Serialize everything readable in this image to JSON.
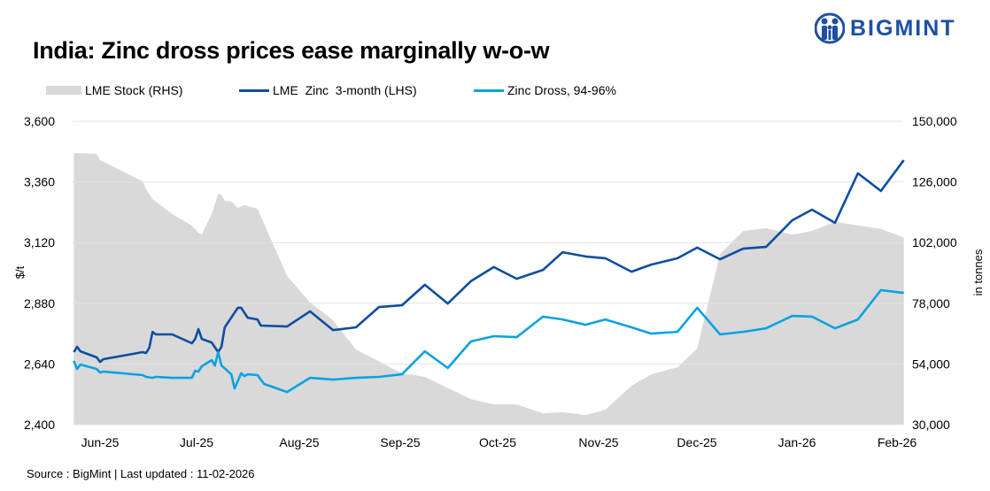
{
  "header": {
    "title": "India: Zinc dross prices ease marginally w-o-w",
    "logo_text": "BIGMINT"
  },
  "footer": {
    "source": "Source : BigMint | Last updated : 11-02-2026"
  },
  "colors": {
    "lme_zinc": "#0d4ea0",
    "zinc_dross": "#0aa2e0",
    "lme_stock": "#d9d9d9",
    "brand": "#1d50a2"
  },
  "chart_data": {
    "type": "line+area",
    "title": "India: Zinc dross prices ease marginally w-o-w",
    "ylabel": "$/t",
    "y2label": "in tonnes",
    "ylim": [
      2400,
      3600
    ],
    "y2lim": [
      30000,
      150000
    ],
    "yticks": [
      "2,400",
      "2,640",
      "2,880",
      "3,120",
      "3,360",
      "3,600"
    ],
    "y2ticks": [
      "30,000",
      "54,000",
      "78,000",
      "102,000",
      "126,000",
      "150,000"
    ],
    "xticks": [
      "Jun-25",
      "Jul-25",
      "Aug-25",
      "Sep-25",
      "Oct-25",
      "Nov-25",
      "Dec-25",
      "Jan-26",
      "Feb-26"
    ],
    "grid": true,
    "legend_position": "top",
    "series": [
      {
        "name": "LME Stock (RHS)",
        "type": "area",
        "axis": "right",
        "points": [
          [
            "2025-05-24",
            137400
          ],
          [
            "2025-05-31",
            137100
          ],
          [
            "2025-06-01",
            134600
          ],
          [
            "2025-06-14",
            126200
          ],
          [
            "2025-06-15",
            123100
          ],
          [
            "2025-06-17",
            119200
          ],
          [
            "2025-06-23",
            113300
          ],
          [
            "2025-06-29",
            108700
          ],
          [
            "2025-07-01",
            105900
          ],
          [
            "2025-07-02",
            105200
          ],
          [
            "2025-07-05",
            113300
          ],
          [
            "2025-07-07",
            121300
          ],
          [
            "2025-07-08",
            121000
          ],
          [
            "2025-07-09",
            118500
          ],
          [
            "2025-07-11",
            118200
          ],
          [
            "2025-07-13",
            115700
          ],
          [
            "2025-07-15",
            116800
          ],
          [
            "2025-07-19",
            115400
          ],
          [
            "2025-07-28",
            88800
          ],
          [
            "2025-08-04",
            78300
          ],
          [
            "2025-08-11",
            71300
          ],
          [
            "2025-08-18",
            59700
          ],
          [
            "2025-09-01",
            50300
          ],
          [
            "2025-09-08",
            48900
          ],
          [
            "2025-09-22",
            40100
          ],
          [
            "2025-09-29",
            38000
          ],
          [
            "2025-10-06",
            38000
          ],
          [
            "2025-10-14",
            34500
          ],
          [
            "2025-10-20",
            34900
          ],
          [
            "2025-10-27",
            33800
          ],
          [
            "2025-11-02",
            35900
          ],
          [
            "2025-11-10",
            45400
          ],
          [
            "2025-11-16",
            49900
          ],
          [
            "2025-11-24",
            52700
          ],
          [
            "2025-11-30",
            60100
          ],
          [
            "2025-12-07",
            97500
          ],
          [
            "2025-12-14",
            106600
          ],
          [
            "2025-12-21",
            107700
          ],
          [
            "2025-12-29",
            105200
          ],
          [
            "2026-01-04",
            106600
          ],
          [
            "2026-01-11",
            110200
          ],
          [
            "2026-01-18",
            108800
          ],
          [
            "2026-01-25",
            107400
          ],
          [
            "2026-02-01",
            104000
          ]
        ]
      },
      {
        "name": "LME  Zinc  3-month (LHS)",
        "type": "line",
        "axis": "left",
        "points": [
          [
            "2025-05-24",
            2687
          ],
          [
            "2025-05-25",
            2708
          ],
          [
            "2025-05-26",
            2690
          ],
          [
            "2025-05-31",
            2666
          ],
          [
            "2025-06-01",
            2648
          ],
          [
            "2025-06-02",
            2659
          ],
          [
            "2025-06-14",
            2687
          ],
          [
            "2025-06-15",
            2683
          ],
          [
            "2025-06-16",
            2704
          ],
          [
            "2025-06-17",
            2767
          ],
          [
            "2025-06-18",
            2757
          ],
          [
            "2025-06-23",
            2757
          ],
          [
            "2025-06-29",
            2722
          ],
          [
            "2025-06-30",
            2739
          ],
          [
            "2025-07-01",
            2778
          ],
          [
            "2025-07-02",
            2739
          ],
          [
            "2025-07-05",
            2725
          ],
          [
            "2025-07-07",
            2687
          ],
          [
            "2025-07-08",
            2708
          ],
          [
            "2025-07-09",
            2785
          ],
          [
            "2025-07-13",
            2862
          ],
          [
            "2025-07-14",
            2862
          ],
          [
            "2025-07-16",
            2823
          ],
          [
            "2025-07-19",
            2816
          ],
          [
            "2025-07-20",
            2792
          ],
          [
            "2025-07-28",
            2788
          ],
          [
            "2025-08-04",
            2848
          ],
          [
            "2025-08-11",
            2774
          ],
          [
            "2025-08-18",
            2785
          ],
          [
            "2025-08-25",
            2865
          ],
          [
            "2025-09-01",
            2872
          ],
          [
            "2025-09-08",
            2953
          ],
          [
            "2025-09-15",
            2879
          ],
          [
            "2025-09-22",
            2967
          ],
          [
            "2025-09-29",
            3023
          ],
          [
            "2025-10-06",
            2977
          ],
          [
            "2025-10-14",
            3012
          ],
          [
            "2025-10-20",
            3082
          ],
          [
            "2025-10-27",
            3065
          ],
          [
            "2025-11-02",
            3058
          ],
          [
            "2025-11-10",
            3005
          ],
          [
            "2025-11-16",
            3033
          ],
          [
            "2025-11-24",
            3058
          ],
          [
            "2025-11-30",
            3100
          ],
          [
            "2025-12-07",
            3054
          ],
          [
            "2025-12-14",
            3096
          ],
          [
            "2025-12-21",
            3103
          ],
          [
            "2025-12-29",
            3208
          ],
          [
            "2026-01-04",
            3250
          ],
          [
            "2026-01-11",
            3198
          ],
          [
            "2026-01-18",
            3394
          ],
          [
            "2026-01-25",
            3324
          ],
          [
            "2026-02-01",
            3446
          ]
        ]
      },
      {
        "name": "Zinc Dross, 94-96%",
        "type": "line",
        "axis": "left",
        "points": [
          [
            "2025-05-24",
            2652
          ],
          [
            "2025-05-25",
            2620
          ],
          [
            "2025-05-26",
            2638
          ],
          [
            "2025-05-31",
            2620
          ],
          [
            "2025-06-01",
            2606
          ],
          [
            "2025-06-02",
            2610
          ],
          [
            "2025-06-14",
            2596
          ],
          [
            "2025-06-15",
            2589
          ],
          [
            "2025-06-17",
            2585
          ],
          [
            "2025-06-18",
            2589
          ],
          [
            "2025-06-23",
            2585
          ],
          [
            "2025-06-29",
            2585
          ],
          [
            "2025-06-30",
            2613
          ],
          [
            "2025-07-01",
            2610
          ],
          [
            "2025-07-02",
            2631
          ],
          [
            "2025-07-05",
            2655
          ],
          [
            "2025-07-06",
            2634
          ],
          [
            "2025-07-07",
            2687
          ],
          [
            "2025-07-08",
            2634
          ],
          [
            "2025-07-11",
            2599
          ],
          [
            "2025-07-12",
            2543
          ],
          [
            "2025-07-14",
            2603
          ],
          [
            "2025-07-15",
            2592
          ],
          [
            "2025-07-16",
            2599
          ],
          [
            "2025-07-19",
            2596
          ],
          [
            "2025-07-21",
            2561
          ],
          [
            "2025-07-28",
            2529
          ],
          [
            "2025-08-04",
            2585
          ],
          [
            "2025-08-11",
            2578
          ],
          [
            "2025-08-18",
            2585
          ],
          [
            "2025-08-25",
            2589
          ],
          [
            "2025-09-01",
            2599
          ],
          [
            "2025-09-08",
            2690
          ],
          [
            "2025-09-15",
            2624
          ],
          [
            "2025-09-22",
            2729
          ],
          [
            "2025-09-29",
            2750
          ],
          [
            "2025-10-06",
            2746
          ],
          [
            "2025-10-14",
            2827
          ],
          [
            "2025-10-20",
            2816
          ],
          [
            "2025-10-27",
            2795
          ],
          [
            "2025-11-02",
            2816
          ],
          [
            "2025-11-10",
            2785
          ],
          [
            "2025-11-16",
            2760
          ],
          [
            "2025-11-24",
            2767
          ],
          [
            "2025-11-30",
            2862
          ],
          [
            "2025-12-07",
            2757
          ],
          [
            "2025-12-14",
            2767
          ],
          [
            "2025-12-21",
            2781
          ],
          [
            "2025-12-29",
            2830
          ],
          [
            "2026-01-04",
            2827
          ],
          [
            "2026-01-11",
            2781
          ],
          [
            "2026-01-18",
            2816
          ],
          [
            "2026-01-25",
            2932
          ],
          [
            "2026-02-01",
            2921
          ]
        ]
      }
    ]
  }
}
